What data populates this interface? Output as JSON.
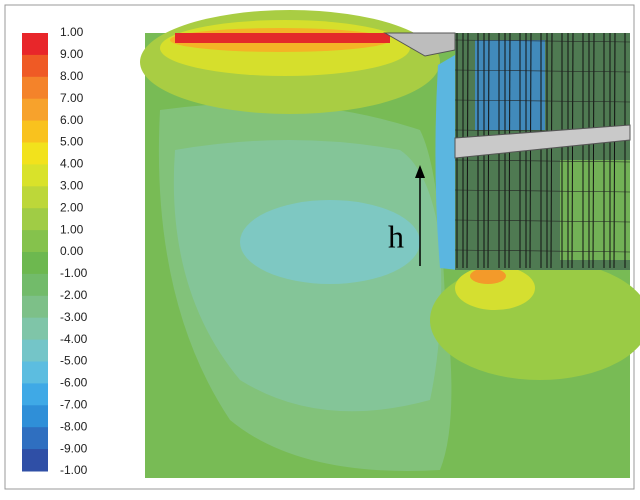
{
  "legend": {
    "labels": [
      "1.00",
      "9.00",
      "8.00",
      "7.00",
      "6.00",
      "5.00",
      "4.00",
      "3.00",
      "2.00",
      "1.00",
      "0.00",
      "-1.00",
      "-2.00",
      "-3.00",
      "-4.00",
      "-5.00",
      "-6.00",
      "-7.00",
      "-8.00",
      "-9.00",
      "-1.00"
    ],
    "colors": [
      "#e8262a",
      "#ef5a25",
      "#f4832a",
      "#f7a22c",
      "#f9c21e",
      "#f2e21c",
      "#d9e22a",
      "#bdd739",
      "#a0cc45",
      "#85c24c",
      "#6db84f",
      "#72bb6a",
      "#7dc088",
      "#7fc5a8",
      "#74c5c8",
      "#5cbde0",
      "#3fa9e6",
      "#2f8fd8",
      "#2f6fc0",
      "#2f4fa6"
    ]
  },
  "annotation": "h"
}
